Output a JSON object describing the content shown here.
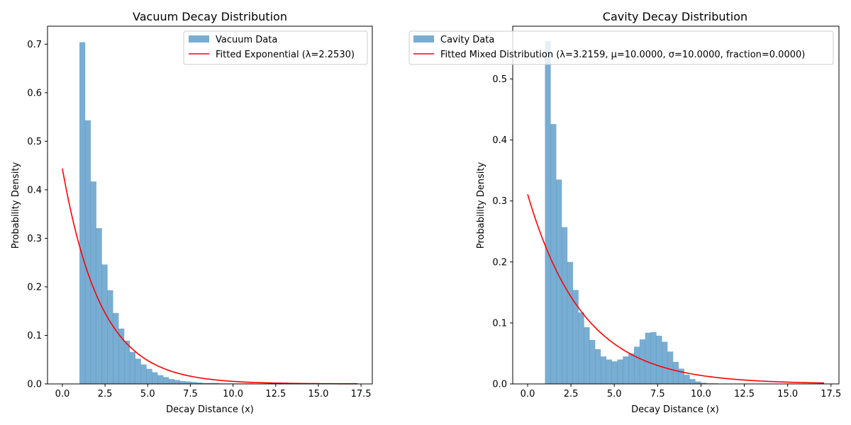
{
  "chart_data": [
    {
      "type": "bar",
      "title": "Vacuum Decay Distribution",
      "xlabel": "Decay Distance (x)",
      "ylabel": "Probability Density",
      "xlim": [
        -0.87,
        18.16
      ],
      "ylim": [
        0,
        0.737
      ],
      "xticks": [
        "0.0",
        "2.5",
        "5.0",
        "7.5",
        "10.0",
        "12.5",
        "15.0",
        "17.5"
      ],
      "xtick_values": [
        0,
        2.5,
        5,
        7.5,
        10,
        12.5,
        15,
        17.5
      ],
      "yticks": [
        "0.0",
        "0.1",
        "0.2",
        "0.3",
        "0.4",
        "0.5",
        "0.6",
        "0.7"
      ],
      "ytick_values": [
        0,
        0.1,
        0.2,
        0.3,
        0.4,
        0.5,
        0.6,
        0.7
      ],
      "legend_position": "upper right",
      "histogram": {
        "name": "Vacuum Data",
        "color": "#1f77b4",
        "alpha": 0.6,
        "bin_start": 1.0,
        "bin_width": 0.327,
        "values": [
          0.704,
          0.543,
          0.417,
          0.321,
          0.246,
          0.193,
          0.146,
          0.114,
          0.089,
          0.066,
          0.052,
          0.04,
          0.031,
          0.024,
          0.018,
          0.014,
          0.01,
          0.008,
          0.006,
          0.005,
          0.004,
          0.003,
          0.002,
          0.002,
          0.002,
          0.001,
          0.001,
          0.001,
          0.001,
          0.001,
          0.001,
          0,
          0,
          0,
          0,
          0,
          0,
          0,
          0,
          0,
          0,
          0,
          0,
          0,
          0,
          0,
          0,
          0,
          0,
          0
        ]
      },
      "fit": {
        "name": "Fitted Exponential (λ=2.2530)",
        "color": "#ff0000",
        "kind": "exponential",
        "lambda": 2.253,
        "x_range": [
          0,
          17.3
        ]
      }
    },
    {
      "type": "bar",
      "title": "Cavity Decay Distribution",
      "xlabel": "Decay Distance (x)",
      "ylabel": "Probability Density",
      "xlim": [
        -0.86,
        17.96
      ],
      "ylim": [
        0,
        0.5865
      ],
      "xticks": [
        "0.0",
        "2.5",
        "5.0",
        "7.5",
        "10.0",
        "12.5",
        "15.0",
        "17.5"
      ],
      "xtick_values": [
        0,
        2.5,
        5,
        7.5,
        10,
        12.5,
        15,
        17.5
      ],
      "yticks": [
        "0.0",
        "0.1",
        "0.2",
        "0.3",
        "0.4",
        "0.5"
      ],
      "ytick_values": [
        0,
        0.1,
        0.2,
        0.3,
        0.4,
        0.5
      ],
      "legend_position": "upper right",
      "histogram": {
        "name": "Cavity Data",
        "color": "#1f77b4",
        "alpha": 0.6,
        "bin_start": 1.0,
        "bin_width": 0.321,
        "values": [
          0.562,
          0.426,
          0.335,
          0.257,
          0.2,
          0.154,
          0.117,
          0.093,
          0.072,
          0.057,
          0.045,
          0.04,
          0.037,
          0.04,
          0.045,
          0.05,
          0.061,
          0.073,
          0.084,
          0.085,
          0.079,
          0.069,
          0.053,
          0.036,
          0.025,
          0.015,
          0.008,
          0.004,
          0.002,
          0.001,
          0.001,
          0,
          0,
          0,
          0,
          0,
          0,
          0,
          0,
          0,
          0,
          0,
          0,
          0,
          0,
          0,
          0,
          0,
          0,
          0
        ]
      },
      "fit": {
        "name": "Fitted Mixed Distribution (λ=3.2159, μ=10.0000, σ=10.0000, fraction=0.0000)",
        "color": "#ff0000",
        "kind": "exponential",
        "lambda": 3.2159,
        "x_range": [
          0,
          17.1
        ]
      }
    }
  ]
}
